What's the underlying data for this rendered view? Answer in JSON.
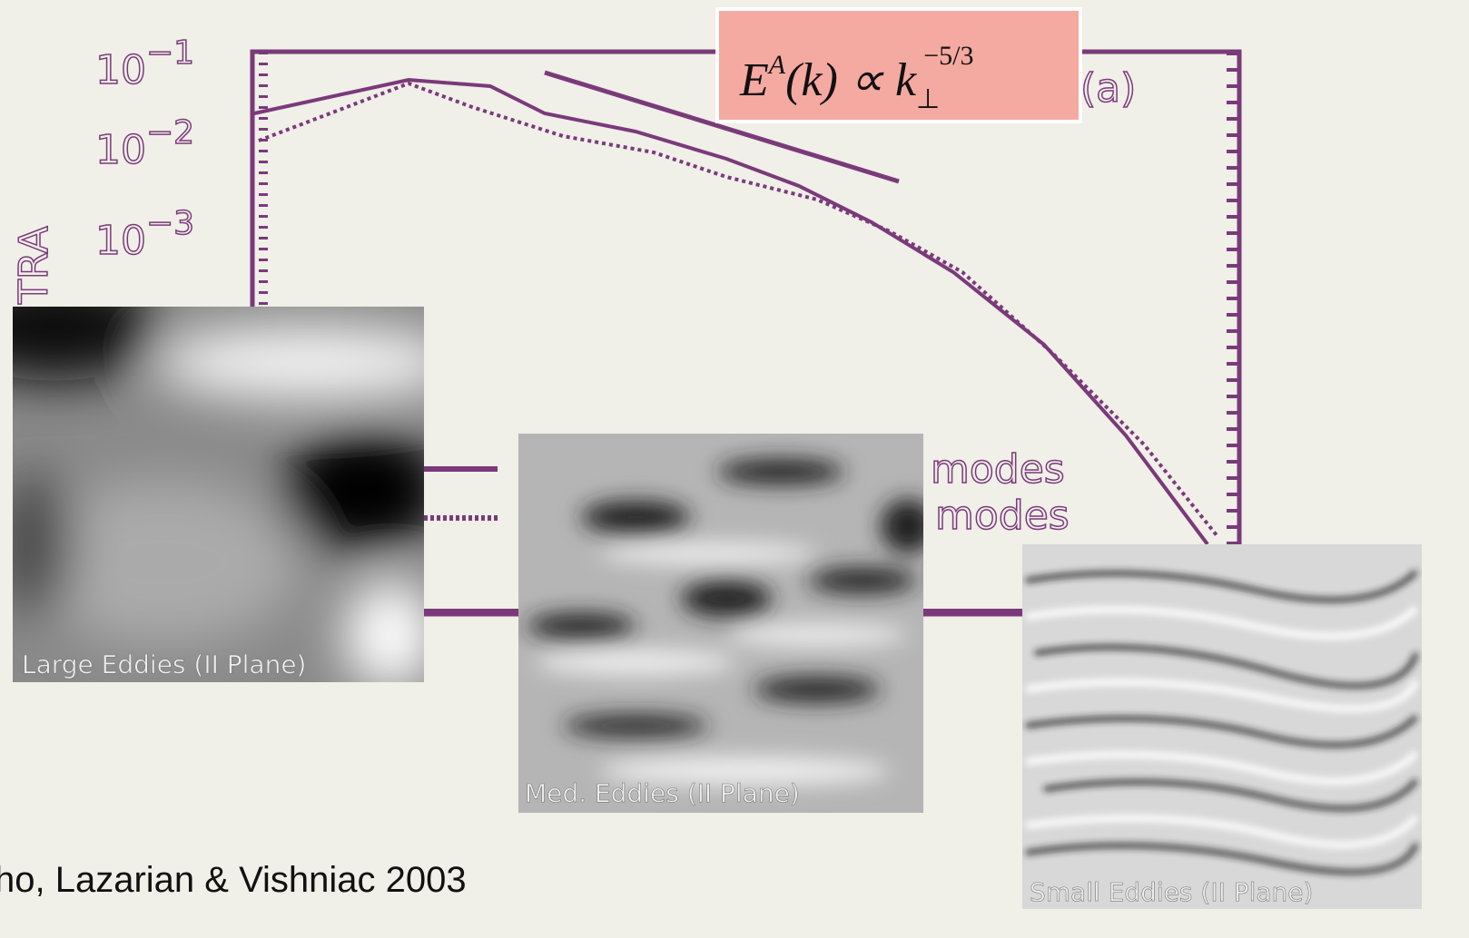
{
  "axis_ticks": [
    {
      "base": "10",
      "exp": "−1"
    },
    {
      "base": "10",
      "exp": "−2"
    },
    {
      "base": "10",
      "exp": "−3"
    }
  ],
  "axis_label": "TRA",
  "formula": {
    "e": "E",
    "sup": "A",
    "mid": "(k) ∝ k",
    "sub": "⊥",
    "exp": "−5/3"
  },
  "panel_label": "(a)",
  "legend": [
    "modes",
    "modes"
  ],
  "images": [
    {
      "caption": "Large Eddies (II Plane)"
    },
    {
      "caption": "Med. Eddies (II Plane)"
    },
    {
      "caption": "Small Eddies (II Plane)"
    }
  ],
  "citation": "ho, Lazarian & Vishniac 2003"
}
